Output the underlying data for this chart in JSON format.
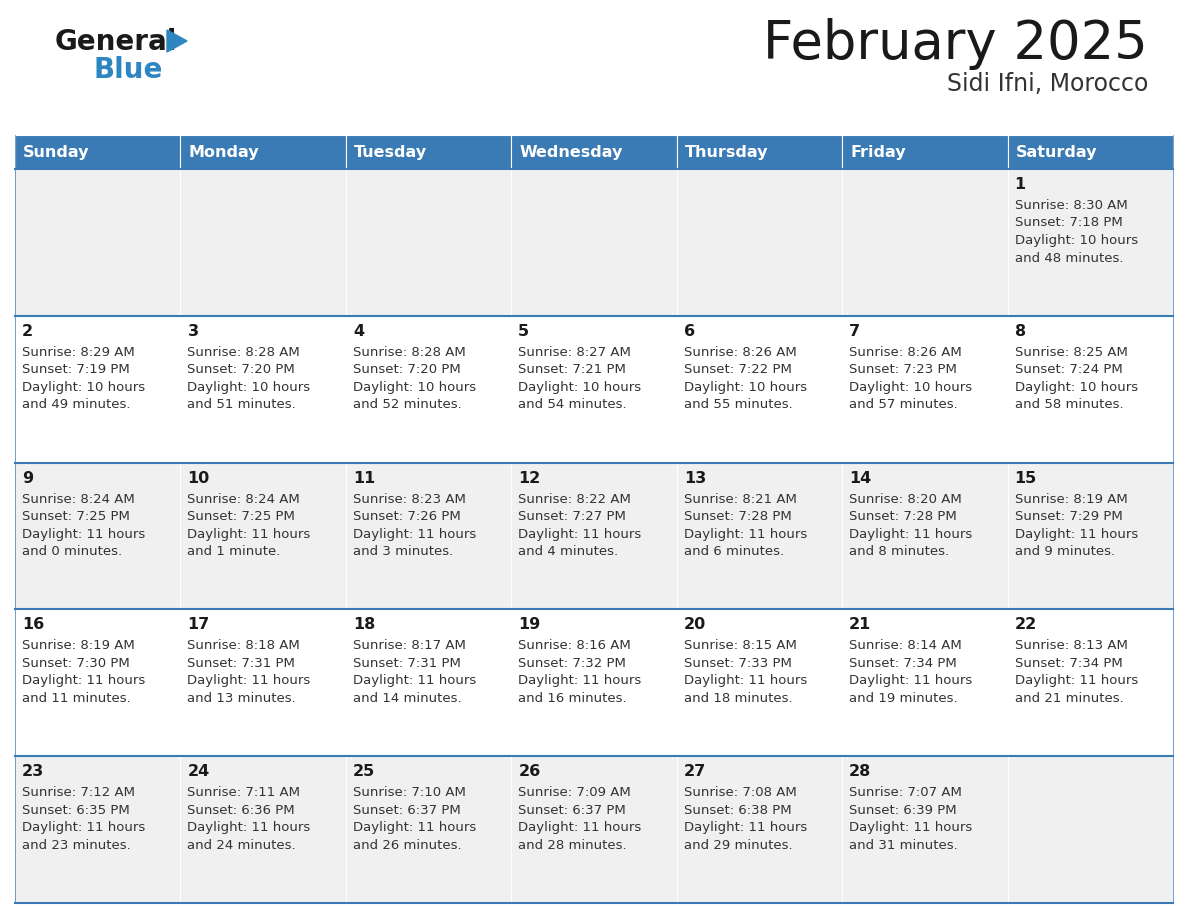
{
  "title": "February 2025",
  "subtitle": "Sidi Ifni, Morocco",
  "days_of_week": [
    "Sunday",
    "Monday",
    "Tuesday",
    "Wednesday",
    "Thursday",
    "Friday",
    "Saturday"
  ],
  "header_bg": "#3A7AB5",
  "header_text": "#FFFFFF",
  "row_bg_odd": "#F0F0F0",
  "row_bg_even": "#FFFFFF",
  "border_color": "#3A7AB5",
  "title_color": "#1a1a1a",
  "subtitle_color": "#333333",
  "day_num_color": "#1a1a1a",
  "cell_text_color": "#333333",
  "logo_general_color": "#1a1a1a",
  "logo_blue_color": "#2E86C1",
  "calendar_data": [
    [
      null,
      null,
      null,
      null,
      null,
      null,
      {
        "day": 1,
        "sunrise": "8:30 AM",
        "sunset": "7:18 PM",
        "daylight_line1": "Daylight: 10 hours",
        "daylight_line2": "and 48 minutes."
      }
    ],
    [
      {
        "day": 2,
        "sunrise": "8:29 AM",
        "sunset": "7:19 PM",
        "daylight_line1": "Daylight: 10 hours",
        "daylight_line2": "and 49 minutes."
      },
      {
        "day": 3,
        "sunrise": "8:28 AM",
        "sunset": "7:20 PM",
        "daylight_line1": "Daylight: 10 hours",
        "daylight_line2": "and 51 minutes."
      },
      {
        "day": 4,
        "sunrise": "8:28 AM",
        "sunset": "7:20 PM",
        "daylight_line1": "Daylight: 10 hours",
        "daylight_line2": "and 52 minutes."
      },
      {
        "day": 5,
        "sunrise": "8:27 AM",
        "sunset": "7:21 PM",
        "daylight_line1": "Daylight: 10 hours",
        "daylight_line2": "and 54 minutes."
      },
      {
        "day": 6,
        "sunrise": "8:26 AM",
        "sunset": "7:22 PM",
        "daylight_line1": "Daylight: 10 hours",
        "daylight_line2": "and 55 minutes."
      },
      {
        "day": 7,
        "sunrise": "8:26 AM",
        "sunset": "7:23 PM",
        "daylight_line1": "Daylight: 10 hours",
        "daylight_line2": "and 57 minutes."
      },
      {
        "day": 8,
        "sunrise": "8:25 AM",
        "sunset": "7:24 PM",
        "daylight_line1": "Daylight: 10 hours",
        "daylight_line2": "and 58 minutes."
      }
    ],
    [
      {
        "day": 9,
        "sunrise": "8:24 AM",
        "sunset": "7:25 PM",
        "daylight_line1": "Daylight: 11 hours",
        "daylight_line2": "and 0 minutes."
      },
      {
        "day": 10,
        "sunrise": "8:24 AM",
        "sunset": "7:25 PM",
        "daylight_line1": "Daylight: 11 hours",
        "daylight_line2": "and 1 minute."
      },
      {
        "day": 11,
        "sunrise": "8:23 AM",
        "sunset": "7:26 PM",
        "daylight_line1": "Daylight: 11 hours",
        "daylight_line2": "and 3 minutes."
      },
      {
        "day": 12,
        "sunrise": "8:22 AM",
        "sunset": "7:27 PM",
        "daylight_line1": "Daylight: 11 hours",
        "daylight_line2": "and 4 minutes."
      },
      {
        "day": 13,
        "sunrise": "8:21 AM",
        "sunset": "7:28 PM",
        "daylight_line1": "Daylight: 11 hours",
        "daylight_line2": "and 6 minutes."
      },
      {
        "day": 14,
        "sunrise": "8:20 AM",
        "sunset": "7:28 PM",
        "daylight_line1": "Daylight: 11 hours",
        "daylight_line2": "and 8 minutes."
      },
      {
        "day": 15,
        "sunrise": "8:19 AM",
        "sunset": "7:29 PM",
        "daylight_line1": "Daylight: 11 hours",
        "daylight_line2": "and 9 minutes."
      }
    ],
    [
      {
        "day": 16,
        "sunrise": "8:19 AM",
        "sunset": "7:30 PM",
        "daylight_line1": "Daylight: 11 hours",
        "daylight_line2": "and 11 minutes."
      },
      {
        "day": 17,
        "sunrise": "8:18 AM",
        "sunset": "7:31 PM",
        "daylight_line1": "Daylight: 11 hours",
        "daylight_line2": "and 13 minutes."
      },
      {
        "day": 18,
        "sunrise": "8:17 AM",
        "sunset": "7:31 PM",
        "daylight_line1": "Daylight: 11 hours",
        "daylight_line2": "and 14 minutes."
      },
      {
        "day": 19,
        "sunrise": "8:16 AM",
        "sunset": "7:32 PM",
        "daylight_line1": "Daylight: 11 hours",
        "daylight_line2": "and 16 minutes."
      },
      {
        "day": 20,
        "sunrise": "8:15 AM",
        "sunset": "7:33 PM",
        "daylight_line1": "Daylight: 11 hours",
        "daylight_line2": "and 18 minutes."
      },
      {
        "day": 21,
        "sunrise": "8:14 AM",
        "sunset": "7:34 PM",
        "daylight_line1": "Daylight: 11 hours",
        "daylight_line2": "and 19 minutes."
      },
      {
        "day": 22,
        "sunrise": "8:13 AM",
        "sunset": "7:34 PM",
        "daylight_line1": "Daylight: 11 hours",
        "daylight_line2": "and 21 minutes."
      }
    ],
    [
      {
        "day": 23,
        "sunrise": "7:12 AM",
        "sunset": "6:35 PM",
        "daylight_line1": "Daylight: 11 hours",
        "daylight_line2": "and 23 minutes."
      },
      {
        "day": 24,
        "sunrise": "7:11 AM",
        "sunset": "6:36 PM",
        "daylight_line1": "Daylight: 11 hours",
        "daylight_line2": "and 24 minutes."
      },
      {
        "day": 25,
        "sunrise": "7:10 AM",
        "sunset": "6:37 PM",
        "daylight_line1": "Daylight: 11 hours",
        "daylight_line2": "and 26 minutes."
      },
      {
        "day": 26,
        "sunrise": "7:09 AM",
        "sunset": "6:37 PM",
        "daylight_line1": "Daylight: 11 hours",
        "daylight_line2": "and 28 minutes."
      },
      {
        "day": 27,
        "sunrise": "7:08 AM",
        "sunset": "6:38 PM",
        "daylight_line1": "Daylight: 11 hours",
        "daylight_line2": "and 29 minutes."
      },
      {
        "day": 28,
        "sunrise": "7:07 AM",
        "sunset": "6:39 PM",
        "daylight_line1": "Daylight: 11 hours",
        "daylight_line2": "and 31 minutes."
      },
      null
    ]
  ],
  "fig_width": 11.88,
  "fig_height": 9.18,
  "dpi": 100
}
